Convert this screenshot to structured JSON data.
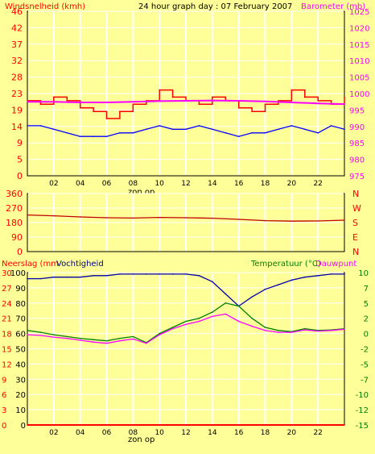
{
  "colors": {
    "background": "#ffff99",
    "plot_area": "#ffff99",
    "grid": "#ffffff",
    "axis_left": "#ff0000",
    "axis_right_top": "#ff00ff",
    "axis_right_bottom": "#008000",
    "wind": "#ff0000",
    "wind_avg": "#0000ff",
    "barometer": "#ff00ff",
    "direction": "#c00000",
    "humidity": "#0000aa",
    "temperature": "#008000",
    "dewpoint": "#ff00ff",
    "rain": "#ff0000",
    "text": "#000000"
  },
  "chart_data": [
    {
      "type": "line",
      "title": "24 hour graph day : 07 February 2007",
      "left_axis_title": "Windsnelheid (kmh)",
      "right_axis_title": "Barometer (mb)",
      "x_ticks": [
        "02",
        "04",
        "06",
        "08",
        "10",
        "12",
        "14",
        "16",
        "18",
        "20",
        "22"
      ],
      "x_annotation": "zon op",
      "xlim": [
        0,
        24
      ],
      "left_ticks": [
        "0",
        "5",
        "9",
        "14",
        "19",
        "23",
        "28",
        "32",
        "37",
        "42",
        "46"
      ],
      "left_ylim": [
        0,
        46
      ],
      "right_ticks": [
        "975",
        "980",
        "985",
        "990",
        "995",
        "1000",
        "1005",
        "1010",
        "1015",
        "1020",
        "1025"
      ],
      "right_ylim": [
        975,
        1025
      ],
      "grid": true,
      "series": [
        {
          "key": "wind_gust",
          "x": [
            0,
            1,
            2,
            3,
            4,
            5,
            6,
            7,
            8,
            9,
            10,
            11,
            12,
            13,
            14,
            15,
            16,
            17,
            18,
            19,
            20,
            21,
            22,
            23,
            24
          ],
          "y": [
            21,
            20,
            22,
            21,
            19,
            18,
            16,
            18,
            20,
            21,
            24,
            22,
            21,
            20,
            22,
            21,
            19,
            18,
            20,
            21,
            24,
            22,
            21,
            20,
            22
          ]
        },
        {
          "key": "wind_avg",
          "x": [
            0,
            1,
            2,
            3,
            4,
            5,
            6,
            7,
            8,
            9,
            10,
            11,
            12,
            13,
            14,
            15,
            16,
            17,
            18,
            19,
            20,
            21,
            22,
            23,
            24
          ],
          "y": [
            14,
            14,
            13,
            12,
            11,
            11,
            11,
            12,
            12,
            13,
            14,
            13,
            13,
            14,
            13,
            12,
            11,
            12,
            12,
            13,
            14,
            13,
            12,
            14,
            13
          ]
        },
        {
          "key": "barometer",
          "x": [
            0,
            2,
            4,
            6,
            8,
            10,
            12,
            14,
            16,
            18,
            20,
            22,
            24
          ],
          "y": [
            997.5,
            997.5,
            997.3,
            997.3,
            997.5,
            997.7,
            997.8,
            997.9,
            997.8,
            997.6,
            997.3,
            997.0,
            996.8
          ]
        }
      ]
    },
    {
      "type": "line",
      "right_axis_title": "N W S E N",
      "right_axis_letters": [
        "N",
        "W",
        "S",
        "E",
        "N"
      ],
      "left_ticks": [
        "0",
        "90",
        "180",
        "270",
        "360"
      ],
      "ylim": [
        0,
        360
      ],
      "xlim": [
        0,
        24
      ],
      "grid": true,
      "series": [
        {
          "key": "direction",
          "x": [
            0,
            2,
            4,
            6,
            8,
            10,
            12,
            14,
            16,
            18,
            20,
            22,
            24
          ],
          "y": [
            227,
            222,
            215,
            210,
            208,
            212,
            210,
            207,
            200,
            192,
            189,
            190,
            195
          ]
        }
      ]
    },
    {
      "type": "line",
      "left_axis_title_1": "Neerslag (mm",
      "left_axis_title_2": "Vochtigheid",
      "right_axis_title_1": "Temperatuur (°C)",
      "right_axis_title_2": "Dauwpunt",
      "x_ticks": [
        "02",
        "04",
        "06",
        "08",
        "10",
        "12",
        "14",
        "16",
        "18",
        "20",
        "22"
      ],
      "x_annotation": "zon op",
      "xlim": [
        0,
        24
      ],
      "left_outer_ticks": [
        "0",
        "3",
        "6",
        "9",
        "12",
        "15",
        "18",
        "21",
        "24",
        "27",
        "30"
      ],
      "left_outer_ylim": [
        0,
        30
      ],
      "left_inner_ticks": [
        "0",
        "10",
        "20",
        "30",
        "40",
        "50",
        "60",
        "70",
        "80",
        "90",
        "100"
      ],
      "left_inner_ylim": [
        0,
        100
      ],
      "right_ticks": [
        "-15",
        "-12",
        "-10",
        "-7",
        "-5",
        "-2",
        "0",
        "2",
        "5",
        "7",
        "10"
      ],
      "right_ylim": [
        -15,
        10
      ],
      "grid": true,
      "series": [
        {
          "key": "humidity",
          "x": [
            0,
            1,
            2,
            3,
            4,
            5,
            6,
            7,
            8,
            9,
            10,
            11,
            12,
            13,
            14,
            15,
            16,
            17,
            18,
            19,
            20,
            21,
            22,
            23,
            24
          ],
          "y": [
            96,
            96,
            97,
            97,
            97,
            98,
            98,
            99,
            99,
            99,
            99,
            99,
            99,
            98,
            94,
            86,
            78,
            84,
            89,
            92,
            95,
            97,
            98,
            99,
            99
          ]
        },
        {
          "key": "temperature",
          "x": [
            0,
            1,
            2,
            3,
            4,
            5,
            6,
            7,
            8,
            9,
            10,
            11,
            12,
            13,
            14,
            15,
            16,
            17,
            18,
            19,
            20,
            21,
            22,
            23,
            24
          ],
          "y": [
            0.5,
            0.2,
            -0.2,
            -0.5,
            -0.8,
            -1,
            -1.2,
            -0.8,
            -0.5,
            -1.5,
            0,
            1,
            2,
            2.5,
            3.5,
            5,
            4.5,
            2.5,
            1,
            0.5,
            0.3,
            0.8,
            0.5,
            0.6,
            0.8
          ]
        },
        {
          "key": "dewpoint",
          "x": [
            0,
            1,
            2,
            3,
            4,
            5,
            6,
            7,
            8,
            9,
            10,
            11,
            12,
            13,
            14,
            15,
            16,
            17,
            18,
            19,
            20,
            21,
            22,
            23,
            24
          ],
          "y": [
            -0.2,
            -0.3,
            -0.6,
            -0.8,
            -1.1,
            -1.4,
            -1.6,
            -1.2,
            -0.9,
            -1.6,
            -0.2,
            0.8,
            1.5,
            2,
            2.8,
            3.2,
            2,
            1.2,
            0.5,
            0.2,
            0.2,
            0.6,
            0.4,
            0.5,
            0.7
          ]
        },
        {
          "key": "rain",
          "x": [
            0,
            24
          ],
          "y": [
            0,
            0
          ]
        }
      ]
    }
  ]
}
